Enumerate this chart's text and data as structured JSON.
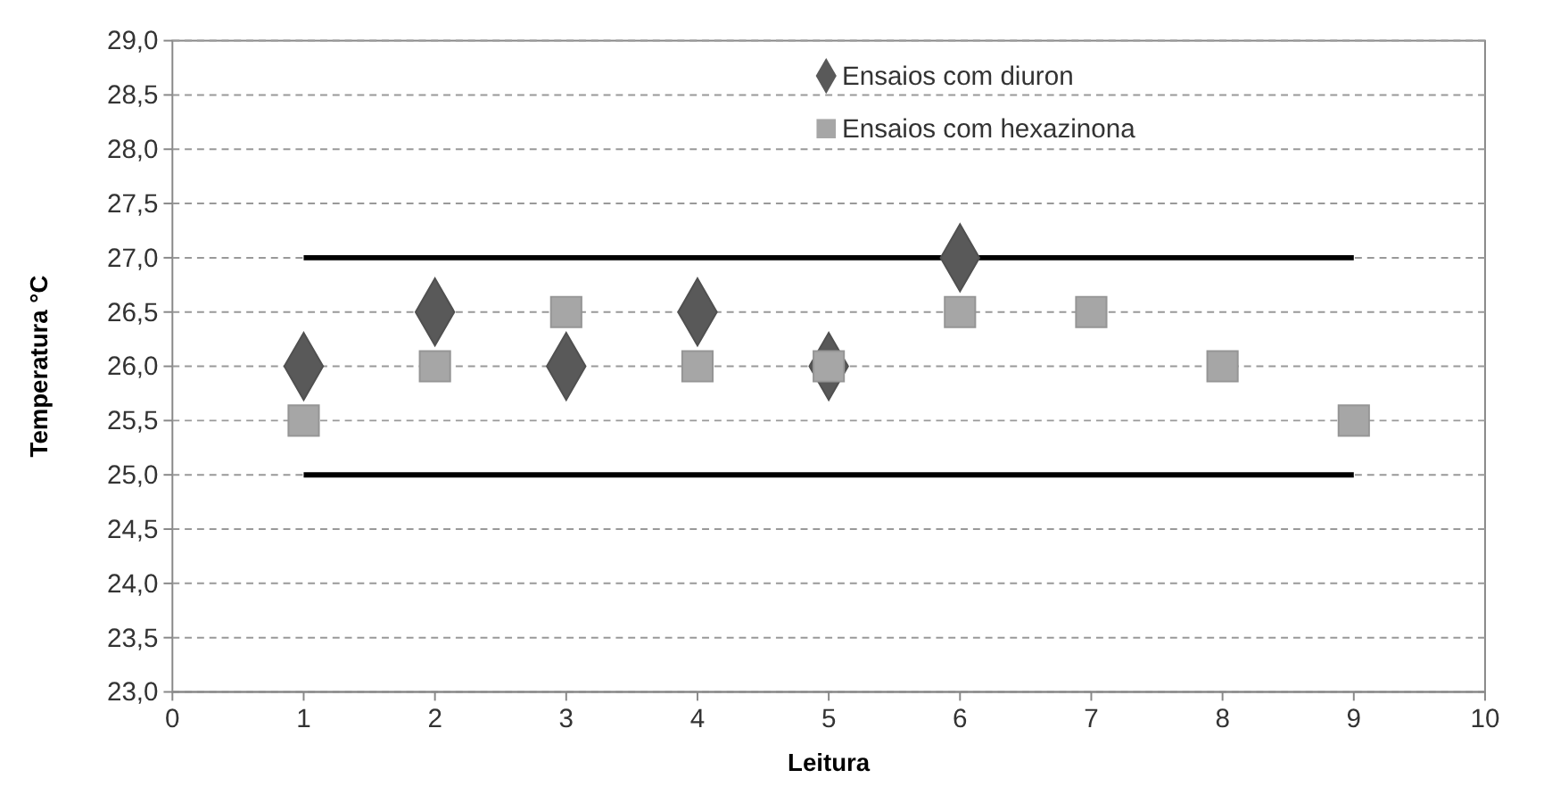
{
  "chart_data": {
    "type": "scatter",
    "xlabel": "Leitura",
    "ylabel": "Temperatura °C",
    "xlim": [
      0,
      10
    ],
    "xticks": [
      0,
      1,
      2,
      3,
      4,
      5,
      6,
      7,
      8,
      9,
      10
    ],
    "ylim": [
      23,
      29
    ],
    "yticks": [
      {
        "value": 23,
        "label": "23,0"
      },
      {
        "value": 23.5,
        "label": "23,5"
      },
      {
        "value": 24,
        "label": "24,0"
      },
      {
        "value": 24.5,
        "label": "24,5"
      },
      {
        "value": 25,
        "label": "25,0"
      },
      {
        "value": 25.5,
        "label": "25,5"
      },
      {
        "value": 26,
        "label": "26,0"
      },
      {
        "value": 26.5,
        "label": "26,5"
      },
      {
        "value": 27,
        "label": "27,0"
      },
      {
        "value": 27.5,
        "label": "27,5"
      },
      {
        "value": 28,
        "label": "28,0"
      },
      {
        "value": 28.5,
        "label": "28,5"
      },
      {
        "value": 29,
        "label": "29,0"
      }
    ],
    "grid": "y",
    "legend": "top right",
    "series": [
      {
        "type": "line",
        "color": "#000000",
        "x": [
          1,
          9
        ],
        "values": [
          27,
          27
        ],
        "marker": "none"
      },
      {
        "type": "line",
        "color": "#000000",
        "x": [
          1,
          9
        ],
        "values": [
          25,
          25
        ],
        "marker": "none"
      },
      {
        "name": "Ensaios com diuron",
        "color": "#595959",
        "marker": "diamond",
        "x": [
          1,
          2,
          3,
          4,
          5,
          6
        ],
        "values": [
          26,
          26.5,
          26,
          26.5,
          26,
          27
        ]
      },
      {
        "name": "Ensaios com hexazinona",
        "color": "#a6a6a6",
        "marker": "square",
        "x": [
          1,
          2,
          3,
          4,
          5,
          6,
          7,
          8,
          9
        ],
        "values": [
          25.5,
          26,
          26.5,
          26,
          26,
          26.5,
          26.5,
          26,
          25.5
        ]
      }
    ]
  }
}
